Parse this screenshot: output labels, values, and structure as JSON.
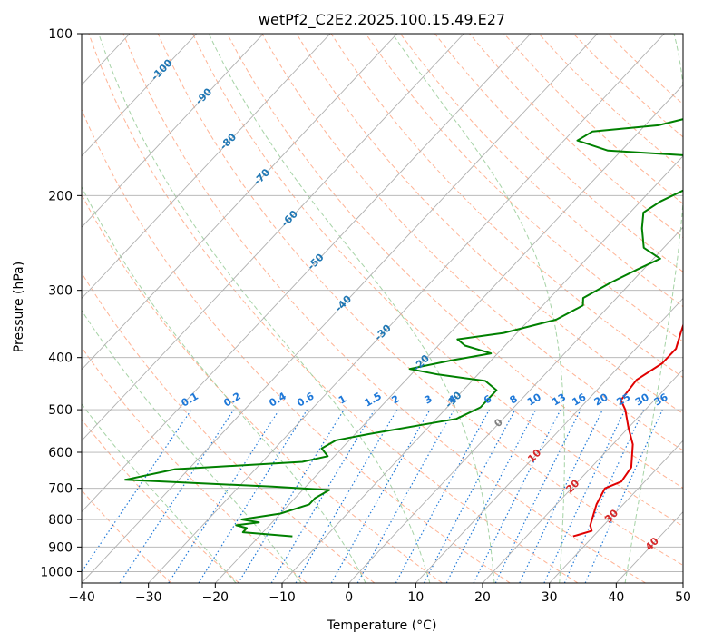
{
  "chart_data": {
    "type": "line",
    "title": "wetPf2_C2E2.2025.100.15.49.E27",
    "xlabel": "Temperature (°C)",
    "ylabel": "Pressure (hPa)",
    "xlim": [
      -40,
      50
    ],
    "ylim": [
      1050,
      100
    ],
    "yscale": "log",
    "grid": true,
    "x_ticks": [
      -40,
      -30,
      -20,
      -10,
      0,
      10,
      20,
      30,
      40,
      50
    ],
    "y_ticks": [
      100,
      200,
      300,
      400,
      500,
      600,
      700,
      800,
      900,
      1000
    ],
    "series": [
      {
        "role": "temperature",
        "color": "#e00000",
        "points": [
          [
            4.5,
            100
          ],
          [
            4.3,
            115
          ],
          [
            5,
            130
          ],
          [
            6.5,
            150
          ],
          [
            6,
            165
          ],
          [
            2,
            180
          ],
          [
            2,
            190
          ],
          [
            3,
            205
          ],
          [
            4.5,
            220
          ],
          [
            6,
            245
          ],
          [
            7,
            260
          ],
          [
            9.5,
            285
          ],
          [
            12,
            320
          ],
          [
            14.5,
            360
          ],
          [
            16,
            385
          ],
          [
            16,
            410
          ],
          [
            14.5,
            440
          ],
          [
            15,
            480
          ],
          [
            17,
            500
          ],
          [
            20,
            540
          ],
          [
            23,
            580
          ],
          [
            26,
            640
          ],
          [
            26.5,
            680
          ],
          [
            25,
            700
          ],
          [
            26,
            750
          ],
          [
            28,
            820
          ],
          [
            29,
            840
          ],
          [
            27,
            860
          ]
        ]
      },
      {
        "role": "dewpoint",
        "color": "#008000",
        "points": [
          [
            1,
            100
          ],
          [
            -3,
            115
          ],
          [
            -4,
            125
          ],
          [
            -8,
            135
          ],
          [
            -18,
            148
          ],
          [
            -27,
            152
          ],
          [
            -28,
            158
          ],
          [
            -22,
            165
          ],
          [
            -4,
            170
          ],
          [
            -3,
            180
          ],
          [
            -4,
            185
          ],
          [
            -5,
            195
          ],
          [
            -7,
            205
          ],
          [
            -8,
            215
          ],
          [
            -6,
            230
          ],
          [
            -3,
            250
          ],
          [
            1,
            262
          ],
          [
            -1,
            275
          ],
          [
            -3,
            290
          ],
          [
            -5,
            310
          ],
          [
            -4,
            320
          ],
          [
            -6,
            340
          ],
          [
            -12,
            360
          ],
          [
            -18,
            370
          ],
          [
            -16,
            380
          ],
          [
            -11,
            393
          ],
          [
            -16,
            405
          ],
          [
            -21,
            420
          ],
          [
            -16,
            430
          ],
          [
            -8,
            442
          ],
          [
            -5,
            460
          ],
          [
            -5,
            495
          ],
          [
            -7,
            520
          ],
          [
            -18,
            555
          ],
          [
            -22,
            570
          ],
          [
            -23,
            590
          ],
          [
            -21,
            610
          ],
          [
            -24,
            625
          ],
          [
            -42,
            645
          ],
          [
            -48,
            675
          ],
          [
            -25,
            695
          ],
          [
            -16,
            705
          ],
          [
            -17,
            730
          ],
          [
            -17,
            750
          ],
          [
            -20,
            780
          ],
          [
            -25,
            800
          ],
          [
            -22,
            810
          ],
          [
            -25,
            820
          ],
          [
            -23,
            830
          ],
          [
            -23,
            845
          ],
          [
            -15,
            860
          ]
        ]
      }
    ],
    "dry_adiabats": [
      -30,
      -20,
      -10,
      0,
      10,
      20,
      30,
      40,
      50,
      60,
      70,
      80,
      90,
      100,
      110,
      120,
      130,
      140,
      150,
      160,
      170,
      180
    ],
    "moist_adiabats": [
      -20,
      -10,
      0,
      10,
      20,
      30,
      40,
      50
    ],
    "mixing_ratios": [
      "0.1",
      "0.2",
      "0.4",
      "0.6",
      "1",
      "1.5",
      "2",
      "3",
      "4",
      "6",
      "8",
      "10",
      "13",
      "16",
      "20",
      "25",
      "30",
      "36"
    ],
    "isotherm_labels": [
      {
        "text": "-100",
        "x": -100,
        "p": 117
      },
      {
        "text": "-90",
        "x": -90,
        "p": 131
      },
      {
        "text": "-80",
        "x": -80,
        "p": 159
      },
      {
        "text": "-70",
        "x": -70,
        "p": 185
      },
      {
        "text": "-60",
        "x": -60,
        "p": 221
      },
      {
        "text": "-50",
        "x": -50,
        "p": 266
      },
      {
        "text": "-40",
        "x": -40,
        "p": 318
      },
      {
        "text": "-30",
        "x": -30,
        "p": 360
      },
      {
        "text": "-20",
        "x": -20,
        "p": 410
      },
      {
        "text": "-10",
        "x": -10,
        "p": 480
      },
      {
        "text": "0",
        "x": 0,
        "p": 530
      },
      {
        "text": "10",
        "x": 10,
        "p": 610
      },
      {
        "text": "20",
        "x": 20,
        "p": 695
      },
      {
        "text": "30",
        "x": 30,
        "p": 790
      },
      {
        "text": "40",
        "x": 40,
        "p": 890
      }
    ],
    "colors": {
      "isotherm": "#b0b0b0",
      "dry_adiabat": "#ffa07a",
      "moist_adiabat": "#90c890",
      "mixing_ratio": "#1e78d8",
      "label_cold": "#1f77b4",
      "label_zero": "#808080",
      "label_warm": "#d62728"
    }
  }
}
